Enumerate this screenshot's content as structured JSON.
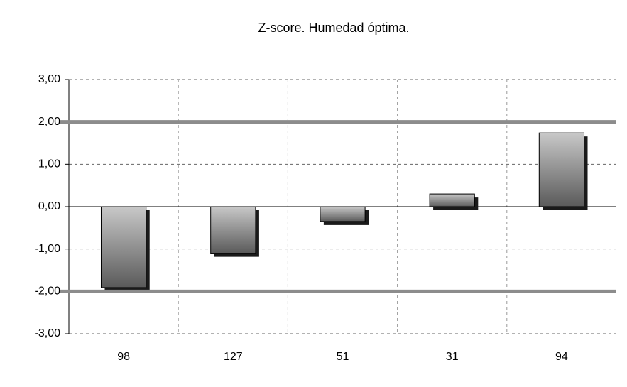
{
  "chart_data": {
    "type": "bar",
    "title": "Z-score. Humedad óptima.",
    "categories": [
      "98",
      "127",
      "51",
      "31",
      "94"
    ],
    "values": [
      -1.91,
      -1.1,
      -0.35,
      0.3,
      1.74
    ],
    "ylim": [
      -3,
      3
    ],
    "yticks": [
      {
        "value": -3,
        "label": "-3,00"
      },
      {
        "value": -2,
        "label": "-2,00"
      },
      {
        "value": -1,
        "label": "-1,00"
      },
      {
        "value": 0,
        "label": "0,00"
      },
      {
        "value": 1,
        "label": "1,00"
      },
      {
        "value": 2,
        "label": "2,00"
      },
      {
        "value": 3,
        "label": "3,00"
      }
    ],
    "reference_lines": [
      2,
      -2
    ],
    "grid": true
  }
}
